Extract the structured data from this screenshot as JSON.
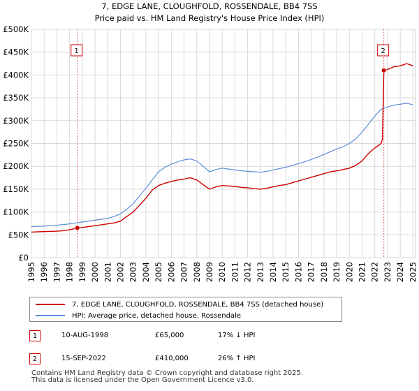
{
  "chart_data": {
    "type": "line",
    "title": "7, EDGE LANE, CLOUGHFOLD, ROSSENDALE, BB4 7SS",
    "subtitle": "Price paid vs. HM Land Registry's House Price Index (HPI)",
    "xlabel": "",
    "ylabel": "",
    "xlim": [
      1995.0,
      2025.2
    ],
    "ylim": [
      0,
      500000
    ],
    "grid": true,
    "x_ticks": [
      1995,
      1996,
      1997,
      1998,
      1999,
      2000,
      2001,
      2002,
      2003,
      2004,
      2005,
      2006,
      2007,
      2008,
      2009,
      2010,
      2011,
      2012,
      2013,
      2014,
      2015,
      2016,
      2017,
      2018,
      2019,
      2020,
      2021,
      2022,
      2023,
      2024,
      2025
    ],
    "x_tick_labels": [
      "1995",
      "1996",
      "1997",
      "1998",
      "1999",
      "2000",
      "2001",
      "2002",
      "2003",
      "2004",
      "2005",
      "2006",
      "2007",
      "2008",
      "2009",
      "2010",
      "2011",
      "2012",
      "2013",
      "2014",
      "2015",
      "2016",
      "2017",
      "2018",
      "2019",
      "2020",
      "2021",
      "2022",
      "2023",
      "2024",
      "2025"
    ],
    "y_ticks": [
      0,
      50000,
      100000,
      150000,
      200000,
      250000,
      300000,
      350000,
      400000,
      450000,
      500000
    ],
    "y_tick_labels": [
      "£0",
      "£50K",
      "£100K",
      "£150K",
      "£200K",
      "£250K",
      "£300K",
      "£350K",
      "£400K",
      "£450K",
      "£500K"
    ],
    "series": [
      {
        "name": "7, EDGE LANE, CLOUGHFOLD, ROSSENDALE, BB4 7SS (detached house)",
        "color": "#cc0000",
        "x": [
          1995.0,
          1995.5,
          1996.0,
          1996.5,
          1997.0,
          1997.5,
          1998.0,
          1998.3,
          1998.61,
          1999.0,
          1999.5,
          2000.0,
          2000.5,
          2001.0,
          2001.5,
          2002.0,
          2002.5,
          2003.0,
          2003.5,
          2004.0,
          2004.5,
          2005.0,
          2005.5,
          2006.0,
          2006.5,
          2007.0,
          2007.5,
          2008.0,
          2008.5,
          2009.0,
          2009.5,
          2010.0,
          2010.5,
          2011.0,
          2011.5,
          2012.0,
          2012.5,
          2013.0,
          2013.5,
          2014.0,
          2014.5,
          2015.0,
          2015.5,
          2016.0,
          2016.5,
          2017.0,
          2017.5,
          2018.0,
          2018.5,
          2019.0,
          2019.5,
          2020.0,
          2020.5,
          2021.0,
          2021.5,
          2022.0,
          2022.5,
          2022.6,
          2022.71,
          2023.0,
          2023.5,
          2024.0,
          2024.5,
          2025.0
        ],
        "values": [
          56000,
          56500,
          57000,
          57500,
          58000,
          59000,
          61000,
          63000,
          65000,
          66000,
          68000,
          70000,
          72000,
          74000,
          76000,
          80000,
          90000,
          100000,
          115000,
          130000,
          148000,
          158000,
          163000,
          167000,
          170000,
          172000,
          175000,
          170000,
          160000,
          150000,
          155000,
          158000,
          157000,
          156000,
          154000,
          153000,
          151000,
          150000,
          152000,
          155000,
          158000,
          160000,
          164000,
          168000,
          172000,
          176000,
          180000,
          184000,
          188000,
          190000,
          193000,
          196000,
          202000,
          212000,
          228000,
          240000,
          250000,
          260000,
          410000,
          412000,
          418000,
          420000,
          425000,
          420000
        ]
      },
      {
        "name": "HPI: Average price, detached house, Rossendale",
        "color": "#5b8ed6",
        "x": [
          1995.0,
          1995.5,
          1996.0,
          1996.5,
          1997.0,
          1997.5,
          1998.0,
          1998.5,
          1999.0,
          1999.5,
          2000.0,
          2000.5,
          2001.0,
          2001.5,
          2002.0,
          2002.5,
          2003.0,
          2003.5,
          2004.0,
          2004.5,
          2005.0,
          2005.5,
          2006.0,
          2006.5,
          2007.0,
          2007.5,
          2008.0,
          2008.5,
          2009.0,
          2009.5,
          2010.0,
          2010.5,
          2011.0,
          2011.5,
          2012.0,
          2012.5,
          2013.0,
          2013.5,
          2014.0,
          2014.5,
          2015.0,
          2015.5,
          2016.0,
          2016.5,
          2017.0,
          2017.5,
          2018.0,
          2018.5,
          2019.0,
          2019.5,
          2020.0,
          2020.5,
          2021.0,
          2021.5,
          2022.0,
          2022.5,
          2023.0,
          2023.5,
          2024.0,
          2024.5,
          2025.0
        ],
        "values": [
          68000,
          68500,
          69000,
          70000,
          71000,
          72500,
          74000,
          76000,
          78000,
          80000,
          82000,
          84000,
          86000,
          90000,
          96000,
          106000,
          118000,
          135000,
          152000,
          170000,
          188000,
          198000,
          205000,
          210000,
          214000,
          216000,
          212000,
          200000,
          188000,
          193000,
          196000,
          194000,
          192000,
          190000,
          189000,
          188000,
          187000,
          189000,
          192000,
          195000,
          198000,
          202000,
          206000,
          210000,
          215000,
          220000,
          226000,
          232000,
          238000,
          243000,
          250000,
          260000,
          275000,
          292000,
          310000,
          325000,
          330000,
          334000,
          336000,
          338000,
          335000
        ]
      }
    ],
    "annotations": [
      {
        "label": "1",
        "x": 1998.61,
        "y": 65000
      },
      {
        "label": "2",
        "x": 2022.71,
        "y": 410000
      }
    ]
  },
  "legend": {
    "items": [
      {
        "label": "7, EDGE LANE, CLOUGHFOLD, ROSSENDALE, BB4 7SS (detached house)",
        "color": "#cc0000"
      },
      {
        "label": "HPI: Average price, detached house, Rossendale",
        "color": "#5b8ed6"
      }
    ]
  },
  "sales": [
    {
      "num": "1",
      "date": "10-AUG-1998",
      "price": "£65,000",
      "hpi": "17% ↓ HPI"
    },
    {
      "num": "2",
      "date": "15-SEP-2022",
      "price": "£410,000",
      "hpi": "26% ↑ HPI"
    }
  ],
  "footer": {
    "line1": "Contains HM Land Registry data © Crown copyright and database right 2025.",
    "line2": "This data is licensed under the Open Government Licence v3.0."
  }
}
